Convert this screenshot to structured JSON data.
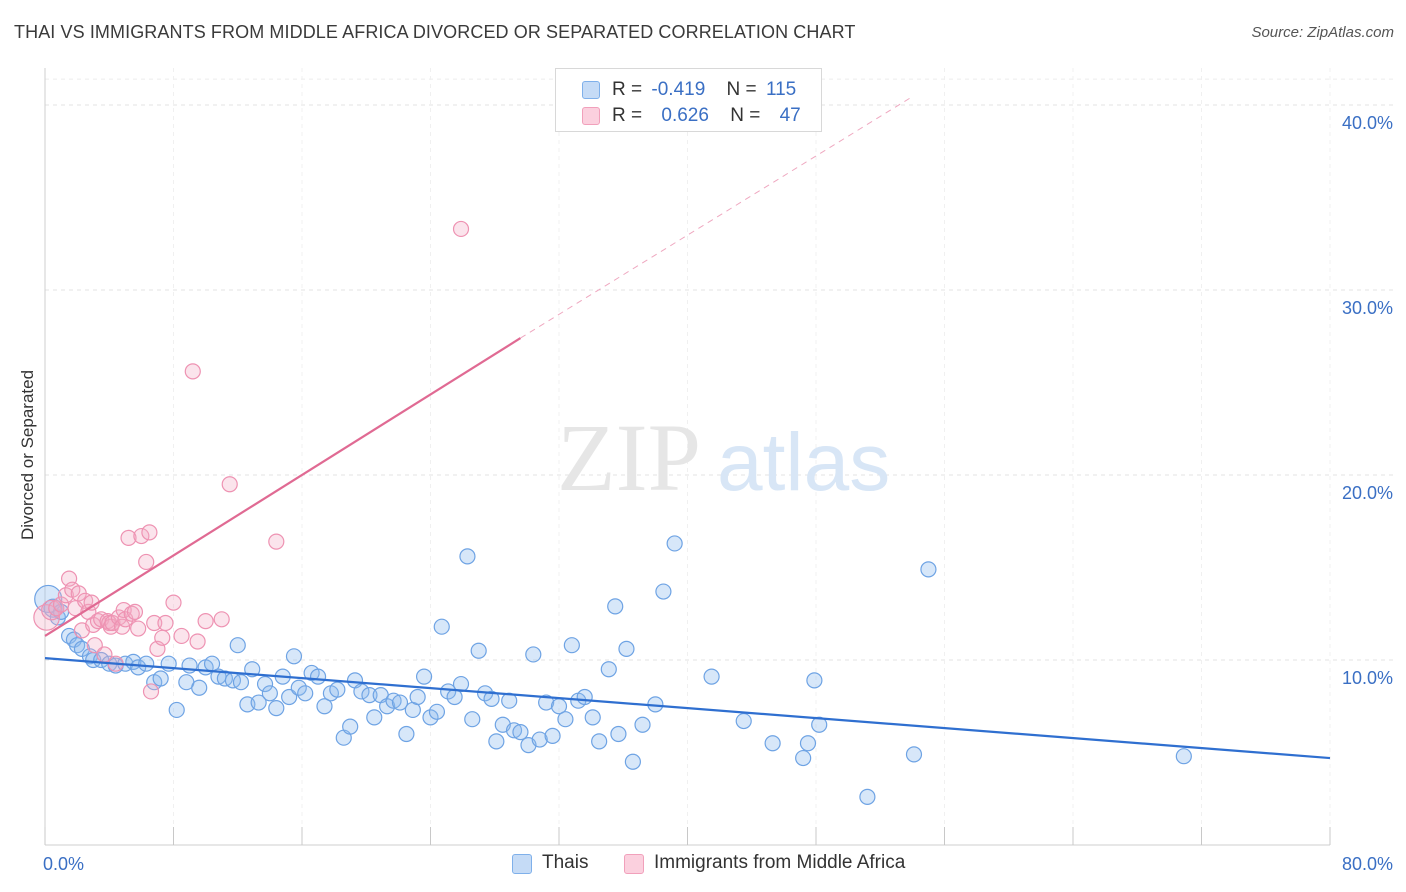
{
  "header": {
    "title": "THAI VS IMMIGRANTS FROM MIDDLE AFRICA DIVORCED OR SEPARATED CORRELATION CHART",
    "source": "Source: ZipAtlas.com"
  },
  "watermark": {
    "zip": "ZIP",
    "atlas": "atlas"
  },
  "legend": {
    "rows": [
      {
        "r_label": "R =",
        "r_value": "-0.419",
        "n_label": "N =",
        "n_value": "115",
        "color": "#7fb0ea"
      },
      {
        "r_label": "R =",
        "r_value": "0.626",
        "n_label": "N =",
        "n_value": "47",
        "color": "#f1a0bb"
      }
    ]
  },
  "bottom_legend": [
    {
      "label": "Thais",
      "color": "#7fb0ea"
    },
    {
      "label": "Immigrants from Middle Africa",
      "color": "#f1a0bb"
    }
  ],
  "chart_data": {
    "type": "scatter",
    "title": "THAI VS IMMIGRANTS FROM MIDDLE AFRICA DIVORCED OR SEPARATED CORRELATION CHART",
    "xlabel": "",
    "ylabel": "Divorced or Separated",
    "xlim": [
      0,
      80
    ],
    "ylim": [
      0,
      42
    ],
    "x_tick_labels": [
      {
        "value": 0,
        "label": "0.0%"
      },
      {
        "value": 80,
        "label": "80.0%"
      }
    ],
    "y_tick_labels": [
      {
        "value": 10,
        "label": "10.0%"
      },
      {
        "value": 20,
        "label": "20.0%"
      },
      {
        "value": 30,
        "label": "30.0%"
      },
      {
        "value": 40,
        "label": "40.0%"
      }
    ],
    "grid": true,
    "legend_position": "top-center",
    "series": [
      {
        "name": "Thais",
        "color": "#7fb0ea",
        "line_color": "#2f6fd0",
        "trend": {
          "x": [
            0,
            80
          ],
          "y": [
            10.1,
            4.7
          ]
        },
        "points": [
          [
            0.2,
            13.3,
            1.8
          ],
          [
            0.5,
            12.8,
            1.2
          ],
          [
            0.8,
            12.3,
            1
          ],
          [
            1.0,
            12.6,
            1
          ],
          [
            1.5,
            11.3,
            1
          ],
          [
            1.8,
            11.1,
            1
          ],
          [
            2.0,
            10.8,
            1
          ],
          [
            2.3,
            10.6,
            1
          ],
          [
            2.8,
            10.2,
            1
          ],
          [
            3.0,
            10.0,
            1
          ],
          [
            3.5,
            10.0,
            1
          ],
          [
            4.0,
            9.8,
            1
          ],
          [
            4.4,
            9.7,
            1
          ],
          [
            5.0,
            9.8,
            1
          ],
          [
            5.5,
            9.9,
            1
          ],
          [
            5.8,
            9.6,
            1
          ],
          [
            6.3,
            9.8,
            1
          ],
          [
            6.8,
            8.8,
            1
          ],
          [
            7.2,
            9.0,
            1
          ],
          [
            7.7,
            9.8,
            1
          ],
          [
            8.2,
            7.3,
            1
          ],
          [
            8.8,
            8.8,
            1
          ],
          [
            9.0,
            9.7,
            1
          ],
          [
            9.6,
            8.5,
            1
          ],
          [
            10.0,
            9.6,
            1
          ],
          [
            10.4,
            9.8,
            1
          ],
          [
            10.8,
            9.1,
            1
          ],
          [
            11.2,
            9.0,
            1
          ],
          [
            11.7,
            8.9,
            1
          ],
          [
            12.0,
            10.8,
            1
          ],
          [
            12.2,
            8.8,
            1
          ],
          [
            12.6,
            7.6,
            1
          ],
          [
            12.9,
            9.5,
            1
          ],
          [
            13.3,
            7.7,
            1
          ],
          [
            13.7,
            8.7,
            1
          ],
          [
            14.0,
            8.2,
            1
          ],
          [
            14.4,
            7.4,
            1
          ],
          [
            14.8,
            9.1,
            1
          ],
          [
            15.2,
            8.0,
            1
          ],
          [
            15.5,
            10.2,
            1
          ],
          [
            15.8,
            8.5,
            1
          ],
          [
            16.2,
            8.2,
            1
          ],
          [
            16.6,
            9.3,
            1
          ],
          [
            17.0,
            9.1,
            1
          ],
          [
            17.4,
            7.5,
            1
          ],
          [
            17.8,
            8.2,
            1
          ],
          [
            18.2,
            8.4,
            1
          ],
          [
            18.6,
            5.8,
            1
          ],
          [
            19.0,
            6.4,
            1
          ],
          [
            19.3,
            8.9,
            1
          ],
          [
            19.7,
            8.3,
            1
          ],
          [
            20.2,
            8.1,
            1
          ],
          [
            20.5,
            6.9,
            1
          ],
          [
            20.9,
            8.1,
            1
          ],
          [
            21.3,
            7.5,
            1
          ],
          [
            21.7,
            7.8,
            1
          ],
          [
            22.1,
            7.7,
            1
          ],
          [
            22.5,
            6.0,
            1
          ],
          [
            22.9,
            7.3,
            1
          ],
          [
            23.2,
            8.0,
            1
          ],
          [
            23.6,
            9.1,
            1
          ],
          [
            24.0,
            6.9,
            1
          ],
          [
            24.4,
            7.2,
            1
          ],
          [
            24.7,
            11.8,
            1
          ],
          [
            25.1,
            8.3,
            1
          ],
          [
            25.5,
            8.0,
            1
          ],
          [
            25.9,
            8.7,
            1
          ],
          [
            26.3,
            15.6,
            1
          ],
          [
            26.6,
            6.8,
            1
          ],
          [
            27.0,
            10.5,
            1
          ],
          [
            27.4,
            8.2,
            1
          ],
          [
            27.8,
            7.9,
            1
          ],
          [
            28.1,
            5.6,
            1
          ],
          [
            28.5,
            6.5,
            1
          ],
          [
            28.9,
            7.8,
            1
          ],
          [
            29.2,
            6.2,
            1
          ],
          [
            29.6,
            6.1,
            1
          ],
          [
            30.1,
            5.4,
            1
          ],
          [
            30.4,
            10.3,
            1
          ],
          [
            30.8,
            5.7,
            1
          ],
          [
            31.2,
            7.7,
            1
          ],
          [
            31.6,
            5.9,
            1
          ],
          [
            32.0,
            7.5,
            1
          ],
          [
            32.4,
            6.8,
            1
          ],
          [
            32.8,
            10.8,
            1
          ],
          [
            33.2,
            7.8,
            1
          ],
          [
            33.6,
            8.0,
            1
          ],
          [
            34.1,
            6.9,
            1
          ],
          [
            34.5,
            5.6,
            1
          ],
          [
            35.1,
            9.5,
            1
          ],
          [
            35.5,
            12.9,
            1
          ],
          [
            35.7,
            6.0,
            1
          ],
          [
            36.2,
            10.6,
            1
          ],
          [
            36.6,
            4.5,
            1
          ],
          [
            37.2,
            6.5,
            1
          ],
          [
            38.0,
            7.6,
            1
          ],
          [
            38.5,
            13.7,
            1
          ],
          [
            39.2,
            16.3,
            1
          ],
          [
            41.5,
            9.1,
            1
          ],
          [
            43.5,
            6.7,
            1
          ],
          [
            45.3,
            5.5,
            1
          ],
          [
            47.2,
            4.7,
            1
          ],
          [
            47.5,
            5.5,
            1
          ],
          [
            47.9,
            8.9,
            1
          ],
          [
            48.2,
            6.5,
            1
          ],
          [
            51.2,
            2.6,
            1
          ],
          [
            54.1,
            4.9,
            1
          ],
          [
            55.0,
            14.9,
            1
          ],
          [
            70.9,
            4.8,
            1
          ]
        ]
      },
      {
        "name": "Immigrants from Middle Africa",
        "color": "#f1a0bb",
        "line_color": "#e06a93",
        "trend": {
          "x": [
            0,
            29.6
          ],
          "y": [
            11.3,
            27.4
          ]
        },
        "trend_ext": {
          "x": [
            29.6,
            53.9
          ],
          "y": [
            27.4,
            40.4
          ]
        },
        "points": [
          [
            0.1,
            12.3,
            1.7
          ],
          [
            0.4,
            12.7,
            1.3
          ],
          [
            0.7,
            12.8,
            1
          ],
          [
            1.0,
            13.0,
            1
          ],
          [
            1.3,
            13.5,
            1
          ],
          [
            1.5,
            14.4,
            1
          ],
          [
            1.7,
            13.8,
            1
          ],
          [
            1.9,
            12.8,
            1
          ],
          [
            2.1,
            13.6,
            1
          ],
          [
            2.3,
            11.6,
            1
          ],
          [
            2.5,
            13.2,
            1
          ],
          [
            2.7,
            12.6,
            1
          ],
          [
            2.9,
            13.1,
            1
          ],
          [
            3.0,
            11.9,
            1
          ],
          [
            3.1,
            10.8,
            1
          ],
          [
            3.3,
            12.1,
            1
          ],
          [
            3.5,
            12.2,
            1
          ],
          [
            3.7,
            10.3,
            1
          ],
          [
            3.9,
            12.1,
            1
          ],
          [
            4.0,
            12.0,
            1
          ],
          [
            4.1,
            11.8,
            1
          ],
          [
            4.2,
            12.0,
            1
          ],
          [
            4.4,
            9.8,
            1
          ],
          [
            4.6,
            12.3,
            1
          ],
          [
            4.8,
            11.8,
            1
          ],
          [
            4.9,
            12.7,
            1
          ],
          [
            5.0,
            12.2,
            1
          ],
          [
            5.2,
            16.6,
            1
          ],
          [
            5.4,
            12.5,
            1
          ],
          [
            5.6,
            12.6,
            1
          ],
          [
            5.8,
            11.7,
            1
          ],
          [
            6.0,
            16.7,
            1
          ],
          [
            6.3,
            15.3,
            1
          ],
          [
            6.5,
            16.9,
            1
          ],
          [
            6.6,
            8.3,
            1
          ],
          [
            6.8,
            12.0,
            1
          ],
          [
            7.0,
            10.6,
            1
          ],
          [
            7.3,
            11.2,
            1
          ],
          [
            7.5,
            12.0,
            1
          ],
          [
            8.0,
            13.1,
            1
          ],
          [
            8.5,
            11.3,
            1
          ],
          [
            9.2,
            25.6,
            1
          ],
          [
            9.5,
            11.0,
            1
          ],
          [
            10.0,
            12.1,
            1
          ],
          [
            11.0,
            12.2,
            1
          ],
          [
            11.5,
            19.5,
            1
          ],
          [
            14.4,
            16.4,
            1
          ],
          [
            25.9,
            33.3,
            1
          ]
        ]
      }
    ]
  }
}
